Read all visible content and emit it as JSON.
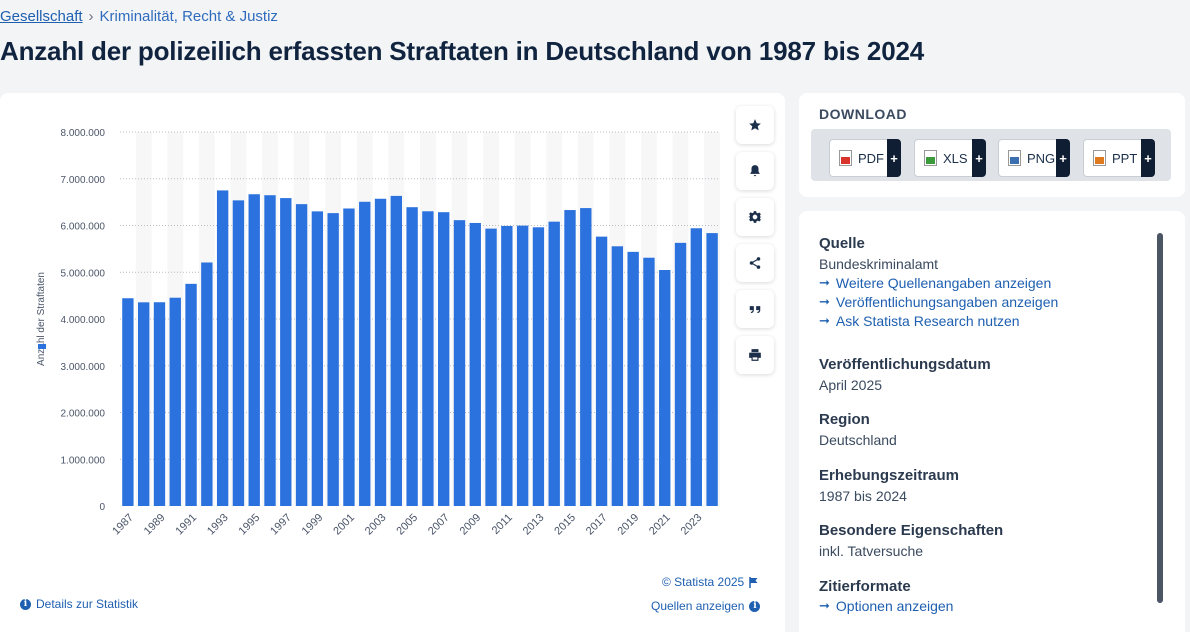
{
  "breadcrumb": {
    "root": "Gesellschaft",
    "separator": "›",
    "current": "Kriminalität, Recht & Justiz"
  },
  "page_title": "Anzahl der polizeilich erfassten Straftaten in Deutschland von 1987 bis 2024",
  "colors": {
    "bar": "#2b72de",
    "link": "#1e5fb0"
  },
  "chart_data": {
    "type": "bar",
    "title": "",
    "xlabel": "",
    "ylabel": "Anzahl der Straftaten",
    "ylim": [
      0,
      8000000
    ],
    "yticks": [
      "0",
      "1.000.000",
      "2.000.000",
      "3.000.000",
      "4.000.000",
      "5.000.000",
      "6.000.000",
      "7.000.000",
      "8.000.000"
    ],
    "categories": [
      "1987",
      "1988",
      "1989",
      "1990",
      "1991",
      "1992",
      "1993",
      "1994",
      "1995",
      "1996",
      "1997",
      "1998",
      "1999",
      "2000",
      "2001",
      "2002",
      "2003",
      "2004",
      "2005",
      "2006",
      "2007",
      "2008",
      "2009",
      "2010",
      "2011",
      "2012",
      "2013",
      "2014",
      "2015",
      "2016",
      "2017",
      "2018",
      "2019",
      "2020",
      "2021",
      "2022",
      "2023",
      "2024"
    ],
    "xtick_labels": [
      "1987",
      "1989",
      "1991",
      "1993",
      "1995",
      "1997",
      "1999",
      "2001",
      "2003",
      "2005",
      "2007",
      "2009",
      "2011",
      "2013",
      "2015",
      "2017",
      "2019",
      "2021",
      "2023"
    ],
    "values": [
      4444108,
      4356726,
      4358573,
      4455333,
      4752175,
      5209060,
      6750613,
      6537748,
      6668717,
      6647598,
      6586165,
      6456996,
      6302316,
      6264723,
      6363865,
      6507394,
      6572135,
      6633156,
      6391715,
      6304223,
      6284661,
      6114128,
      6054330,
      5933278,
      5990679,
      5997040,
      5961662,
      6082064,
      6330649,
      6372526,
      5761984,
      5555520,
      5436401,
      5310621,
      5047860,
      5628584,
      5940667,
      5837445
    ]
  },
  "toolbar": {
    "icons": [
      "star-icon",
      "bell-icon",
      "gear-icon",
      "share-icon",
      "quote-icon",
      "print-icon"
    ]
  },
  "footer": {
    "copyright": "© Statista 2025",
    "details": "Details zur Statistik",
    "sources": "Quellen anzeigen"
  },
  "download": {
    "title": "DOWNLOAD",
    "buttons": [
      {
        "label": "PDF",
        "color": "#d9342b"
      },
      {
        "label": "XLS",
        "color": "#3b9b3b"
      },
      {
        "label": "PNG",
        "color": "#3b6fb0"
      },
      {
        "label": "PPT",
        "color": "#e07a1f"
      }
    ],
    "plus": "+"
  },
  "meta": {
    "source_heading": "Quelle",
    "source_value": "Bundeskriminalamt",
    "links": [
      "Weitere Quellenangaben anzeigen",
      "Veröffentlichungsangaben anzeigen",
      "Ask Statista Research nutzen"
    ],
    "pub_heading": "Veröffentlichungsdatum",
    "pub_value": "April 2025",
    "region_heading": "Region",
    "region_value": "Deutschland",
    "period_heading": "Erhebungszeitraum",
    "period_value": "1987 bis 2024",
    "special_heading": "Besondere Eigenschaften",
    "special_value": "inkl. Tatversuche",
    "cite_heading": "Zitierformate",
    "cite_link": "Optionen anzeigen",
    "arrow": "➞"
  }
}
